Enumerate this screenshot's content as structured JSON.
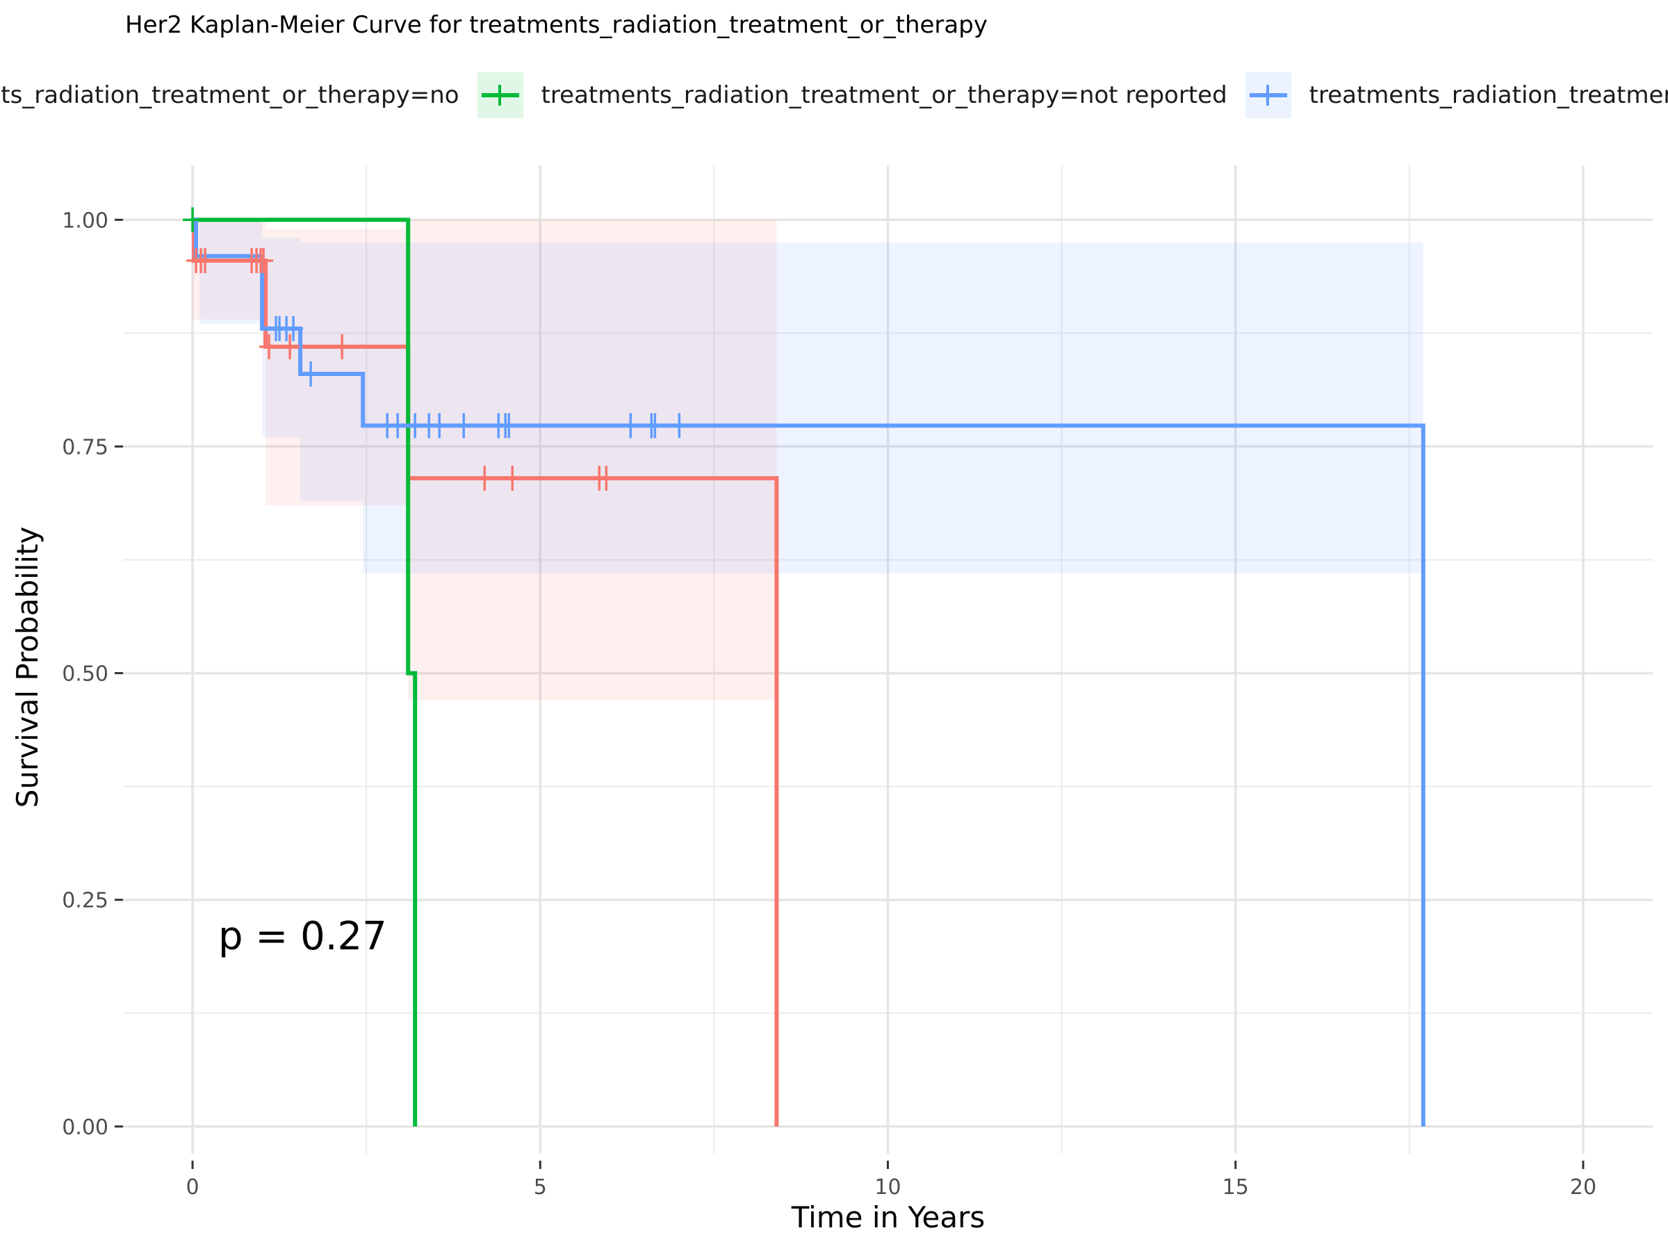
{
  "chart_data": {
    "type": "line",
    "title": "Her2 Kaplan-Meier Curve for treatments_radiation_treatment_or_therapy",
    "xlabel": "Time in Years",
    "ylabel": "Survival Probability",
    "xlim": [
      -1,
      21
    ],
    "ylim": [
      -0.03,
      1.06
    ],
    "x_ticks": [
      0,
      5,
      10,
      15,
      20
    ],
    "x_tick_labels": [
      "0",
      "5",
      "10",
      "15",
      "20"
    ],
    "y_ticks": [
      0,
      0.25,
      0.5,
      0.75,
      1
    ],
    "y_tick_labels": [
      "0.00",
      "0.25",
      "0.50",
      "0.75",
      "1.00"
    ],
    "grid": true,
    "legend_position": "top",
    "annotation": "p = 0.27",
    "series": [
      {
        "name": "treatments_radiation_treatment_or_therapy=no",
        "color": "#F8766D",
        "steps": [
          [
            0,
            1.0
          ],
          [
            0.02,
            0.955
          ],
          [
            1.05,
            0.86
          ],
          [
            3.1,
            0.715
          ],
          [
            8.4,
            0.0
          ]
        ],
        "end_x": 8.4,
        "censors": [
          [
            0.05,
            0.955
          ],
          [
            0.12,
            0.955
          ],
          [
            0.18,
            0.955
          ],
          [
            0.85,
            0.955
          ],
          [
            0.92,
            0.955
          ],
          [
            0.98,
            0.955
          ],
          [
            1.02,
            0.955
          ],
          [
            1.1,
            0.86
          ],
          [
            1.4,
            0.86
          ],
          [
            2.15,
            0.86
          ],
          [
            4.2,
            0.715
          ],
          [
            4.6,
            0.715
          ],
          [
            5.85,
            0.715
          ],
          [
            5.95,
            0.715
          ]
        ],
        "ci": [
          [
            0,
            0.89,
            1.0
          ],
          [
            1.05,
            0.685,
            0.99
          ],
          [
            1.58,
            0.685,
            0.99
          ],
          [
            2.45,
            0.685,
            0.99
          ],
          [
            3.1,
            0.47,
            1.0
          ]
        ],
        "ci_end": 8.4
      },
      {
        "name": "treatments_radiation_treatment_or_therapy=not reported",
        "color": "#00BA38",
        "steps": [
          [
            0,
            1.0
          ],
          [
            3.1,
            0.5
          ],
          [
            3.2,
            0.0
          ]
        ],
        "end_x": 3.2,
        "censors": [
          [
            0.0,
            1.0
          ]
        ],
        "ci": [],
        "ci_end": 3.2
      },
      {
        "name": "treatments_radiation_treatment_or_therapy=yes",
        "color": "#619CFF",
        "steps": [
          [
            0,
            1.0
          ],
          [
            0.05,
            0.96
          ],
          [
            1.0,
            0.88
          ],
          [
            1.55,
            0.83
          ],
          [
            2.45,
            0.773
          ],
          [
            17.7,
            0.0
          ]
        ],
        "end_x": 17.7,
        "censors": [
          [
            1.2,
            0.88
          ],
          [
            1.25,
            0.88
          ],
          [
            1.35,
            0.88
          ],
          [
            1.45,
            0.88
          ],
          [
            1.7,
            0.83
          ],
          [
            2.8,
            0.773
          ],
          [
            2.95,
            0.773
          ],
          [
            3.2,
            0.773
          ],
          [
            3.4,
            0.773
          ],
          [
            3.55,
            0.773
          ],
          [
            3.9,
            0.773
          ],
          [
            4.4,
            0.773
          ],
          [
            4.5,
            0.773
          ],
          [
            4.55,
            0.773
          ],
          [
            6.3,
            0.773
          ],
          [
            6.6,
            0.773
          ],
          [
            6.65,
            0.773
          ],
          [
            7.0,
            0.773
          ]
        ],
        "ci": [
          [
            0.1,
            0.885,
            1.0
          ],
          [
            1.0,
            0.76,
            0.98
          ],
          [
            1.55,
            0.69,
            0.975
          ],
          [
            2.45,
            0.61,
            0.975
          ]
        ],
        "ci_end": 17.7
      }
    ]
  }
}
